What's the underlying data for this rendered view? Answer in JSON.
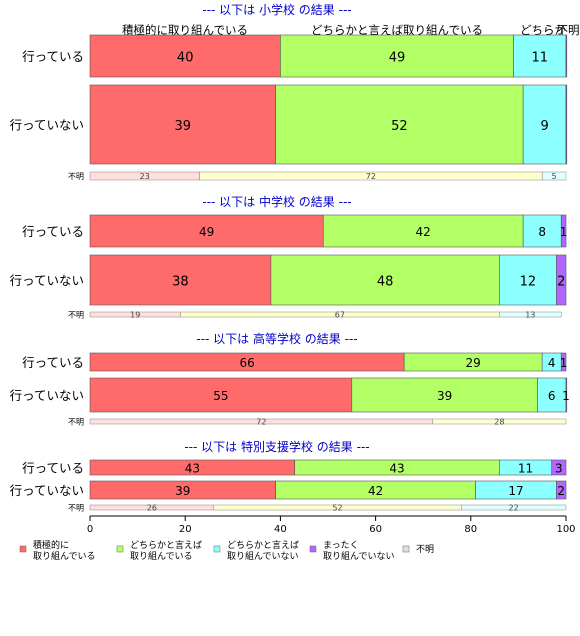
{
  "chart_data": {
    "type": "bar",
    "orientation": "horizontal",
    "stacked": true,
    "xlim": [
      0,
      100
    ],
    "x_ticks": [
      "0",
      "20",
      "40",
      "60",
      "80",
      "100"
    ],
    "column_headers": [
      "積極的に取り組んでいる",
      "どちらかと言えば取り組んでいる",
      "どちらか",
      "不明"
    ],
    "legend": {
      "placement": "bottom-left",
      "items": [
        {
          "label": "積極的に 取り組んでいる",
          "color": "#ff6b6b"
        },
        {
          "label": "どちらかと言えば 取り組んでいる",
          "color": "#b3ff66"
        },
        {
          "label": "どちらかと言えば 取り組んでいない",
          "color": "#8cffff"
        },
        {
          "label": "まったく 取り組んでいない",
          "color": "#b066ff"
        },
        {
          "label": "不明",
          "color": "#e0e0e0"
        }
      ]
    },
    "groups": [
      {
        "title": "--- 以下は 小学校 の結果 ---",
        "rows": [
          {
            "label": "行っている",
            "values": [
              40,
              49,
              11,
              0.4,
              0
            ],
            "labels": [
              "40",
              "49",
              "11",
              "",
              ""
            ]
          },
          {
            "label": "行っていない",
            "values": [
              39,
              52,
              9,
              0.5,
              0
            ],
            "labels": [
              "39",
              "52",
              "9",
              "",
              ""
            ]
          }
        ],
        "unknown": {
          "label": "不明",
          "values": [
            23,
            72,
            5
          ],
          "labels": [
            "23",
            "72",
            "5"
          ]
        }
      },
      {
        "title": "--- 以下は 中学校 の結果 ---",
        "rows": [
          {
            "label": "行っている",
            "values": [
              49,
              42,
              8,
              1,
              0
            ],
            "labels": [
              "49",
              "42",
              "8",
              "1",
              ""
            ]
          },
          {
            "label": "行っていない",
            "values": [
              38,
              48,
              12,
              2,
              0
            ],
            "labels": [
              "38",
              "48",
              "12",
              "2",
              ""
            ]
          }
        ],
        "unknown": {
          "label": "不明",
          "values": [
            19,
            67,
            13
          ],
          "labels": [
            "19",
            "67",
            "13"
          ]
        }
      },
      {
        "title": "--- 以下は 高等学校 の結果 ---",
        "rows": [
          {
            "label": "行っている",
            "values": [
              66,
              29,
              4,
              1,
              0
            ],
            "labels": [
              "66",
              "29",
              "4",
              "1",
              ""
            ]
          },
          {
            "label": "行っていない",
            "values": [
              55,
              39,
              6,
              1,
              0
            ],
            "labels": [
              "55",
              "39",
              "6",
              "1",
              ""
            ]
          }
        ],
        "unknown": {
          "label": "不明",
          "values": [
            72,
            28,
            0
          ],
          "labels": [
            "72",
            "28",
            ""
          ]
        }
      },
      {
        "title": "--- 以下は 特別支援学校 の結果 ---",
        "rows": [
          {
            "label": "行っている",
            "values": [
              43,
              43,
              11,
              3,
              0
            ],
            "labels": [
              "43",
              "43",
              "11",
              "3",
              ""
            ]
          },
          {
            "label": "行っていない",
            "values": [
              39,
              42,
              17,
              2,
              0
            ],
            "labels": [
              "39",
              "42",
              "17",
              "2",
              ""
            ]
          }
        ],
        "unknown": {
          "label": "不明",
          "values": [
            26,
            52,
            22
          ],
          "labels": [
            "26",
            "52",
            "22"
          ]
        }
      }
    ],
    "colors": {
      "main": [
        "#ff6b6b",
        "#b3ff66",
        "#8cffff",
        "#b066ff",
        "#e0e0e0"
      ],
      "unknown": [
        "#ffdede",
        "#ffffcc",
        "#e0ffff"
      ],
      "title": "#0000cc"
    }
  }
}
